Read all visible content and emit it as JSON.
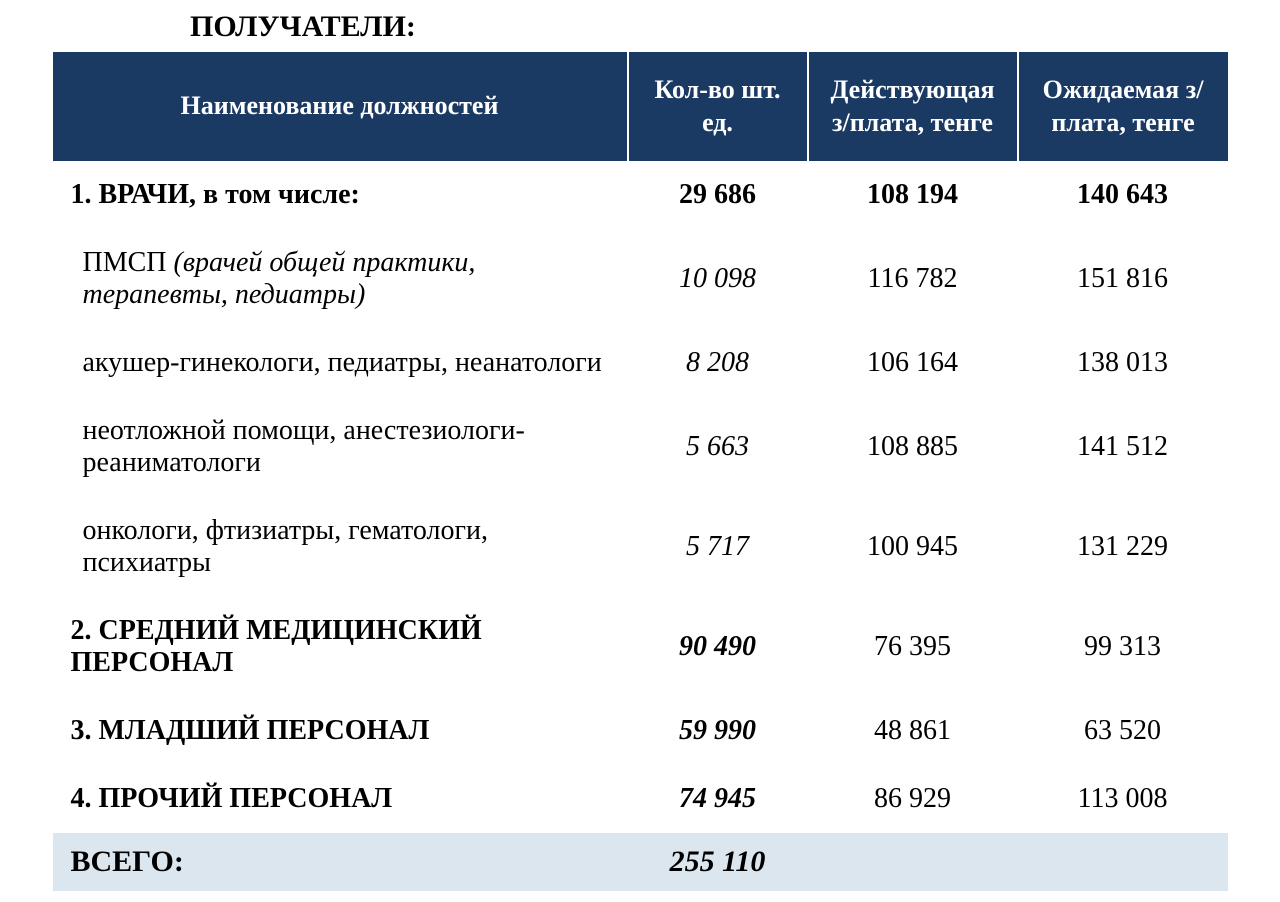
{
  "title": "ПОЛУЧАТЕЛИ:",
  "table": {
    "header_bg": "#1b3a63",
    "header_text_color": "#ffffff",
    "total_bg": "#dbe6ef",
    "columns": {
      "name": "Наименование должностей",
      "qty": "Кол-во шт. ед.",
      "current": "Действующая з/плата, тенге",
      "expected": "Ожидаемая з/плата, тенге"
    },
    "rows": [
      {
        "type": "bold",
        "name": "1. ВРАЧИ, в том числе:",
        "qty": "29 686",
        "current": "108 194",
        "expected": "140 643"
      },
      {
        "type": "sub",
        "name_prefix": "ПМСП",
        "name_italic": "  (врачей общей практики, терапевты, педиатры)",
        "qty": "10 098",
        "current": "116 782",
        "expected": "151 816"
      },
      {
        "type": "sub",
        "name": "акушер-гинекологи, педиатры, неанатологи",
        "qty": "8 208",
        "current": "106 164",
        "expected": "138 013"
      },
      {
        "type": "sub",
        "name": "неотложной помощи, анестезиологи-реаниматологи",
        "qty": "5 663",
        "current": "108 885",
        "expected": "141 512"
      },
      {
        "type": "sub",
        "name": "онкологи, фтизиатры, гематологи, психиатры",
        "qty": "5 717",
        "current": "100 945",
        "expected": "131 229"
      },
      {
        "type": "section",
        "name": "2. СРЕДНИЙ МЕДИЦИНСКИЙ ПЕРСОНАЛ",
        "qty": "90 490",
        "current": "76 395",
        "expected": "99 313"
      },
      {
        "type": "section",
        "name": "3. МЛАДШИЙ ПЕРСОНАЛ",
        "qty": "59 990",
        "current": "48 861",
        "expected": "63 520"
      },
      {
        "type": "section",
        "name": "4. ПРОЧИЙ ПЕРСОНАЛ",
        "qty": "74 945",
        "current": "86 929",
        "expected": "113 008"
      }
    ],
    "total": {
      "label": "ВСЕГО:",
      "qty": "255 110",
      "current": "",
      "expected": ""
    }
  }
}
